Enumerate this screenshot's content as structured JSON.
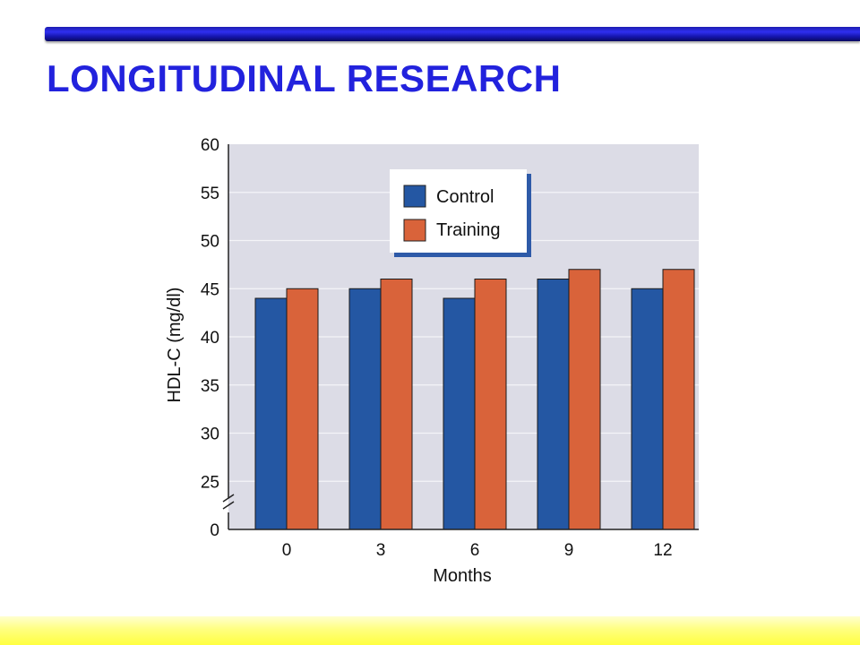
{
  "slide": {
    "title": "LONGITUDINAL RESEARCH"
  },
  "colors": {
    "title": "#2222dd",
    "plot_bg": "#dcdce6",
    "control": "#2457a3",
    "training": "#d9633a"
  },
  "chart_data": {
    "type": "bar",
    "categories": [
      "0",
      "3",
      "6",
      "9",
      "12"
    ],
    "series": [
      {
        "name": "Control",
        "values": [
          44,
          45,
          44,
          46,
          45
        ],
        "color": "#2457a3"
      },
      {
        "name": "Training",
        "values": [
          45,
          46,
          46,
          47,
          47
        ],
        "color": "#d9633a"
      }
    ],
    "xlabel": "Months",
    "ylabel": "HDL-C (mg/dl)",
    "yticks": [
      "0",
      "25",
      "30",
      "35",
      "40",
      "45",
      "50",
      "55",
      "60"
    ],
    "ylim": [
      20,
      60
    ],
    "axis_break": true,
    "grid": true,
    "legend": "top-center"
  }
}
